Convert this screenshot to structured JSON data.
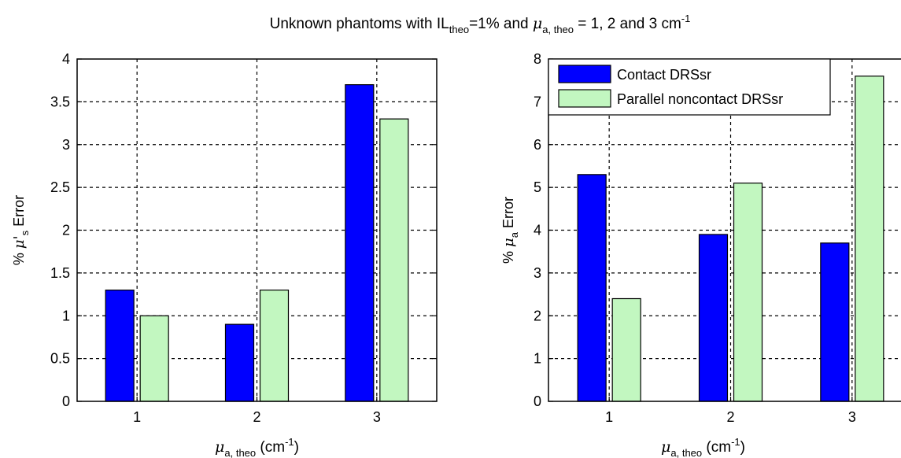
{
  "figure_title": {
    "prefix": "Unknown phantoms with IL",
    "prefix_sub": "theo",
    "middle": "=1% and ",
    "mu": "μ",
    "mu_sub": "a, theo",
    "suffix": " = 1, 2 and 3 cm",
    "suffix_sup": "-1"
  },
  "colors": {
    "contact": "#0000ff",
    "noncontact": "#c2f7c0",
    "grid": "#000000",
    "background": "#ffffff"
  },
  "chart_data": [
    {
      "type": "bar",
      "categories": [
        "1",
        "2",
        "3"
      ],
      "series": [
        {
          "name": "Contact DRSsr",
          "values": [
            1.3,
            0.9,
            3.7
          ]
        },
        {
          "name": "Parallel noncontact DRSsr",
          "values": [
            1.0,
            1.3,
            3.3
          ]
        }
      ],
      "ylim": [
        0,
        4
      ],
      "yticks": [
        "0",
        "0.5",
        "1",
        "1.5",
        "2",
        "2.5",
        "3",
        "3.5",
        "4"
      ],
      "ylabel": {
        "prefix": "% ",
        "mu": "μ'",
        "sub": "s",
        "suffix": " Error"
      },
      "xlabel": {
        "mu": "μ",
        "sub": "a, theo",
        "unit": " (cm",
        "sup": "-1",
        "close": ")"
      },
      "grid": true,
      "legend": null
    },
    {
      "type": "bar",
      "categories": [
        "1",
        "2",
        "3"
      ],
      "series": [
        {
          "name": "Contact DRSsr",
          "values": [
            5.3,
            3.9,
            3.7
          ]
        },
        {
          "name": "Parallel noncontact DRSsr",
          "values": [
            2.4,
            5.1,
            7.6
          ]
        }
      ],
      "ylim": [
        0,
        8
      ],
      "yticks": [
        "0",
        "1",
        "2",
        "3",
        "4",
        "5",
        "6",
        "7",
        "8"
      ],
      "ylabel": {
        "prefix": "% ",
        "mu": "μ",
        "sub": "a",
        "suffix": " Error"
      },
      "xlabel": {
        "mu": "μ",
        "sub": "a, theo",
        "unit": " (cm",
        "sup": "-1",
        "close": ")"
      },
      "grid": true,
      "legend": "top-left"
    }
  ]
}
